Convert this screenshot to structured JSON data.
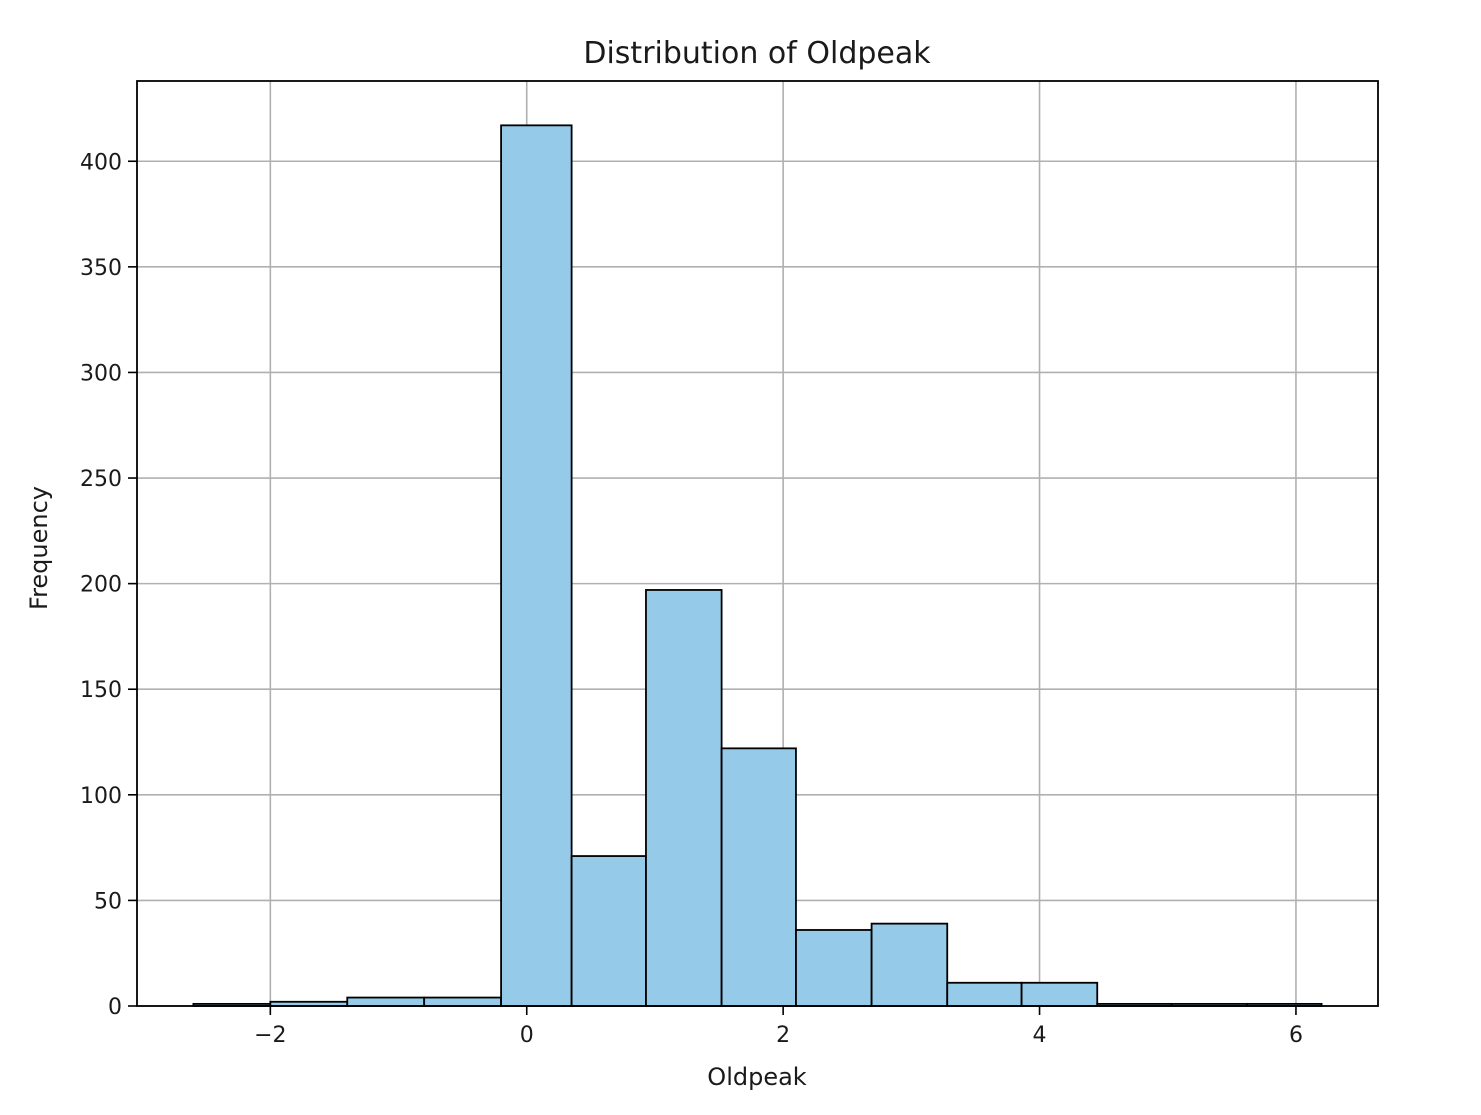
{
  "chart_data": {
    "type": "bar",
    "title": "Distribution of Oldpeak",
    "xlabel": "Oldpeak",
    "ylabel": "Frequency",
    "xlim": [
      -3.04,
      6.64
    ],
    "ylim": [
      0,
      438
    ],
    "xticks": [
      {
        "value": -2,
        "label": "−2"
      },
      {
        "value": 0,
        "label": "0"
      },
      {
        "value": 2,
        "label": "2"
      },
      {
        "value": 4,
        "label": "4"
      },
      {
        "value": 6,
        "label": "6"
      }
    ],
    "yticks": [
      {
        "value": 0,
        "label": "0"
      },
      {
        "value": 50,
        "label": "50"
      },
      {
        "value": 100,
        "label": "100"
      },
      {
        "value": 150,
        "label": "150"
      },
      {
        "value": 200,
        "label": "200"
      },
      {
        "value": 250,
        "label": "250"
      },
      {
        "value": 300,
        "label": "300"
      },
      {
        "value": 350,
        "label": "350"
      },
      {
        "value": 400,
        "label": "400"
      }
    ],
    "grid": true,
    "bar_color": "#95cbe8",
    "edge_color": "#000000",
    "bins": [
      {
        "start": -2.6,
        "end": -2.0,
        "count": 1
      },
      {
        "start": -2.0,
        "end": -1.4,
        "count": 2
      },
      {
        "start": -1.4,
        "end": -0.8,
        "count": 4
      },
      {
        "start": -0.8,
        "end": -0.2,
        "count": 4
      },
      {
        "start": -0.2,
        "end": 0.35,
        "count": 417
      },
      {
        "start": 0.35,
        "end": 0.93,
        "count": 71
      },
      {
        "start": 0.93,
        "end": 1.52,
        "count": 197
      },
      {
        "start": 1.52,
        "end": 2.1,
        "count": 122
      },
      {
        "start": 2.1,
        "end": 2.69,
        "count": 36
      },
      {
        "start": 2.69,
        "end": 3.28,
        "count": 39
      },
      {
        "start": 3.28,
        "end": 3.86,
        "count": 11
      },
      {
        "start": 3.86,
        "end": 4.45,
        "count": 11
      },
      {
        "start": 4.45,
        "end": 5.03,
        "count": 1
      },
      {
        "start": 5.03,
        "end": 5.62,
        "count": 1
      },
      {
        "start": 5.62,
        "end": 6.2,
        "count": 1
      }
    ]
  }
}
